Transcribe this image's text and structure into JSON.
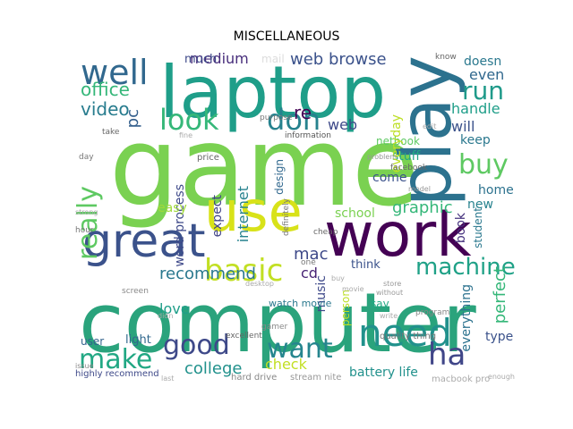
{
  "title": "MISCELLANEOUS",
  "words": [
    {
      "text": "computer",
      "color": "#2aa37c",
      "vertical": false
    },
    {
      "text": "game",
      "color": "#7ad151",
      "vertical": false
    },
    {
      "text": "laptop",
      "color": "#1f9e89",
      "vertical": false
    },
    {
      "text": "work",
      "color": "#440154",
      "vertical": false
    },
    {
      "text": "use",
      "color": "#d8e219",
      "vertical": false
    },
    {
      "text": "play",
      "color": "#2c728e",
      "vertical": true
    },
    {
      "text": "great",
      "color": "#3b528b",
      "vertical": false
    },
    {
      "text": "need",
      "color": "#21918c",
      "vertical": false
    },
    {
      "text": "basic",
      "color": "#c2df23",
      "vertical": false
    },
    {
      "text": "well",
      "color": "#31688e",
      "vertical": false
    },
    {
      "text": "look",
      "color": "#35b779",
      "vertical": false
    },
    {
      "text": "don",
      "color": "#26828e",
      "vertical": false
    },
    {
      "text": "really",
      "color": "#5ec962",
      "vertical": true
    },
    {
      "text": "good",
      "color": "#3e4989",
      "vertical": false
    },
    {
      "text": "make",
      "color": "#22a884",
      "vertical": false
    },
    {
      "text": "want",
      "color": "#25858e",
      "vertical": false
    },
    {
      "text": "buy",
      "color": "#5ec962",
      "vertical": false
    },
    {
      "text": "run",
      "color": "#1f9a8a",
      "vertical": false
    },
    {
      "text": "machine",
      "color": "#1fa187",
      "vertical": false
    },
    {
      "text": "ha",
      "color": "#404688",
      "vertical": false
    },
    {
      "text": "office",
      "color": "#35b779",
      "vertical": false
    },
    {
      "text": "video",
      "color": "#287c8e",
      "vertical": false
    },
    {
      "text": "pc",
      "color": "#35608d",
      "vertical": true
    },
    {
      "text": "web browse",
      "color": "#3b528b",
      "vertical": false
    },
    {
      "text": "medium",
      "color": "#472d7b",
      "vertical": false
    },
    {
      "text": "much",
      "color": "#3e4989",
      "vertical": false
    },
    {
      "text": "mail",
      "color": "#ddd",
      "vertical": false
    },
    {
      "text": "even",
      "color": "#31688e",
      "vertical": false
    },
    {
      "text": "doesn",
      "color": "#2a788e",
      "vertical": false
    },
    {
      "text": "handle",
      "color": "#1f9e89",
      "vertical": false
    },
    {
      "text": "will",
      "color": "#3b528b",
      "vertical": false
    },
    {
      "text": "keep",
      "color": "#2a788e",
      "vertical": false
    },
    {
      "text": "re",
      "color": "#440154",
      "vertical": false
    },
    {
      "text": "web",
      "color": "#3e4989",
      "vertical": false
    },
    {
      "text": "netbook",
      "color": "#5ec962",
      "vertical": false
    },
    {
      "text": "stuff",
      "color": "#22a884",
      "vertical": false
    },
    {
      "text": "come",
      "color": "#3b528b",
      "vertical": false
    },
    {
      "text": "graphic",
      "color": "#35b779",
      "vertical": false
    },
    {
      "text": "school",
      "color": "#7ad151",
      "vertical": false
    },
    {
      "text": "home",
      "color": "#2c728e",
      "vertical": false
    },
    {
      "text": "new",
      "color": "#26828e",
      "vertical": false
    },
    {
      "text": "book",
      "color": "#46327e",
      "vertical": true
    },
    {
      "text": "student",
      "color": "#2a788e",
      "vertical": true
    },
    {
      "text": "recommend",
      "color": "#2a788e",
      "vertical": false
    },
    {
      "text": "mac",
      "color": "#3e4989",
      "vertical": false
    },
    {
      "text": "cd",
      "color": "#482475",
      "vertical": false
    },
    {
      "text": "think",
      "color": "#3b528b",
      "vertical": false
    },
    {
      "text": "love",
      "color": "#1f9e89",
      "vertical": false
    },
    {
      "text": "light",
      "color": "#31688e",
      "vertical": false
    },
    {
      "text": "user",
      "color": "#33638d",
      "vertical": false
    },
    {
      "text": "college",
      "color": "#21918c",
      "vertical": false
    },
    {
      "text": "check",
      "color": "#c2df23",
      "vertical": false
    },
    {
      "text": "battery life",
      "color": "#21918c",
      "vertical": false
    },
    {
      "text": "music",
      "color": "#3e4989",
      "vertical": true
    },
    {
      "text": "perfect",
      "color": "#35b779",
      "vertical": true
    },
    {
      "text": "say",
      "color": "#22a884",
      "vertical": false
    },
    {
      "text": "type",
      "color": "#3b528b",
      "vertical": false
    },
    {
      "text": "everything",
      "color": "#2c728e",
      "vertical": true
    },
    {
      "text": "internet",
      "color": "#26828e",
      "vertical": true
    },
    {
      "text": "design",
      "color": "#31688e",
      "vertical": true
    },
    {
      "text": "everyday",
      "color": "#bddf26",
      "vertical": true
    },
    {
      "text": "word process",
      "color": "#3e4989",
      "vertical": true
    },
    {
      "text": "easy",
      "color": "#a0da39",
      "vertical": false
    },
    {
      "text": "expect",
      "color": "#414487",
      "vertical": true
    },
    {
      "text": "watch movie",
      "color": "#2a788e",
      "vertical": false
    },
    {
      "text": "highly recommend",
      "color": "#3e4989",
      "vertical": false
    },
    {
      "text": "hard drive",
      "color": "#888",
      "vertical": false
    },
    {
      "text": "stream nite",
      "color": "#999",
      "vertical": false
    },
    {
      "text": "macbook pro",
      "color": "#aaa",
      "vertical": false
    },
    {
      "text": "person",
      "color": "#bddf26",
      "vertical": true
    },
    {
      "text": "excellent",
      "color": "#666",
      "vertical": false
    },
    {
      "text": "quality thing",
      "color": "#777",
      "vertical": false
    },
    {
      "text": "information",
      "color": "#555",
      "vertical": false
    },
    {
      "text": "price",
      "color": "#666",
      "vertical": false
    },
    {
      "text": "facebook",
      "color": "#666",
      "vertical": false
    },
    {
      "text": "screen",
      "color": "#888",
      "vertical": false
    },
    {
      "text": "cheap",
      "color": "#666",
      "vertical": false
    },
    {
      "text": "know",
      "color": "#666",
      "vertical": false
    },
    {
      "text": "day",
      "color": "#777",
      "vertical": false
    },
    {
      "text": "hour",
      "color": "#777",
      "vertical": false
    },
    {
      "text": "take",
      "color": "#666",
      "vertical": false
    },
    {
      "text": "purpose",
      "color": "#777",
      "vertical": false
    },
    {
      "text": "without",
      "color": "#999",
      "vertical": false
    },
    {
      "text": "program",
      "color": "#888",
      "vertical": false
    },
    {
      "text": "gamer",
      "color": "#888",
      "vertical": false
    },
    {
      "text": "store",
      "color": "#999",
      "vertical": false
    },
    {
      "text": "definitely",
      "color": "#777",
      "vertical": true
    },
    {
      "text": "issue",
      "color": "#888",
      "vertical": false
    },
    {
      "text": "last",
      "color": "#aaa",
      "vertical": false
    },
    {
      "text": "strong",
      "color": "#aaa",
      "vertical": false
    },
    {
      "text": "enough",
      "color": "#aaa",
      "vertical": false
    },
    {
      "text": "problem",
      "color": "#999",
      "vertical": false
    },
    {
      "text": "model",
      "color": "#999",
      "vertical": false
    },
    {
      "text": "desktop",
      "color": "#aaa",
      "vertical": false
    },
    {
      "text": "movie",
      "color": "#aaa",
      "vertical": false
    },
    {
      "text": "edit",
      "color": "#aaa",
      "vertical": false
    },
    {
      "text": "write",
      "color": "#aaa",
      "vertical": false
    },
    {
      "text": "one",
      "color": "#777",
      "vertical": false
    },
    {
      "text": "buy",
      "color": "#aaa",
      "vertical": false
    },
    {
      "text": "didn",
      "color": "#aaa",
      "vertical": false
    },
    {
      "text": "fine",
      "color": "#aaa",
      "vertical": false
    }
  ]
}
